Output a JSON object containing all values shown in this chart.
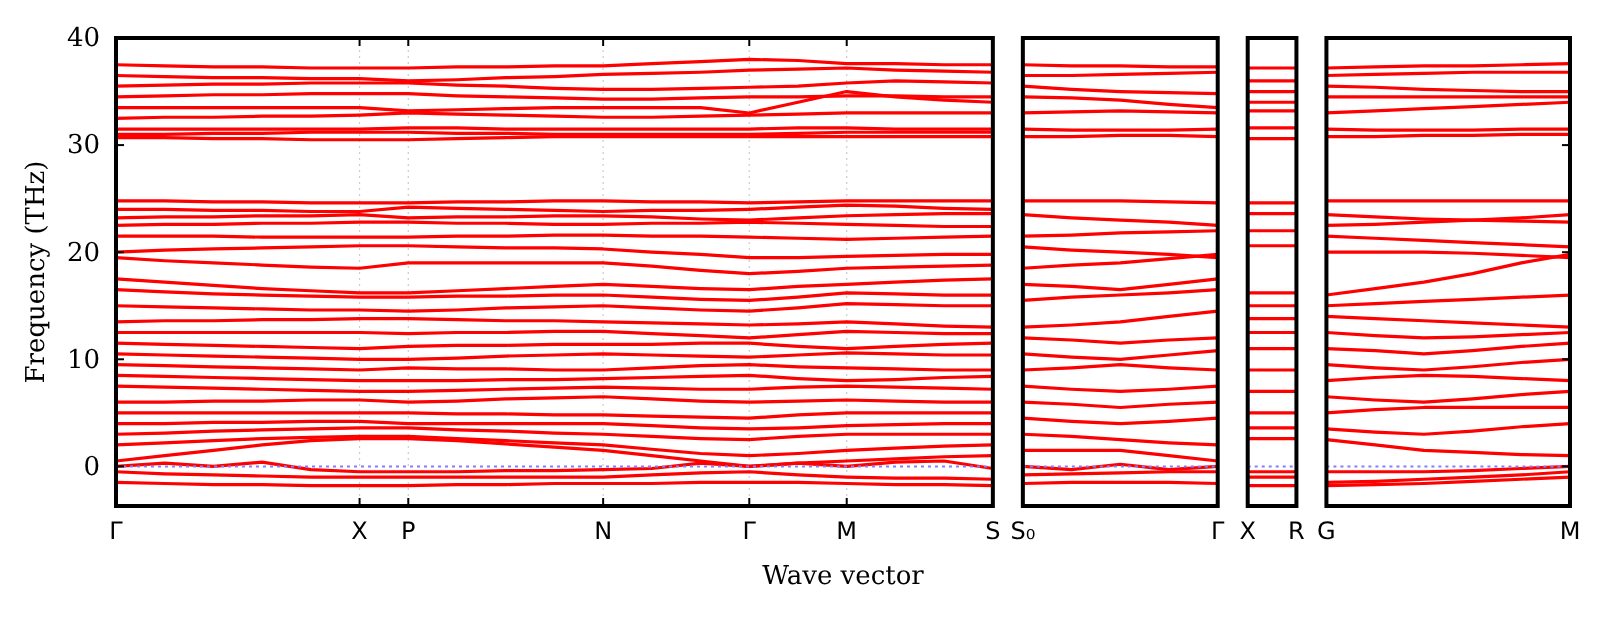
{
  "chart_data": [
    {
      "type": "line",
      "ylabel": "Frequency (THz)",
      "xlabel": "Wave vector",
      "ylim": [
        -3.7,
        40
      ],
      "yticks": [
        0,
        10,
        20,
        30,
        40
      ],
      "grid": "x",
      "categories": [
        "Γ",
        null,
        null,
        null,
        null,
        "X",
        "P",
        null,
        null,
        null,
        "N",
        null,
        null,
        "Γ",
        null,
        "M",
        null,
        null,
        "S"
      ],
      "ref_lines": [
        {
          "axis": "y",
          "value": 0,
          "color": "#8080ff",
          "line_style": "dotted"
        }
      ],
      "series": [
        {
          "color": "#ff0000",
          "values": [
            37.5,
            37.4,
            37.3,
            37.3,
            37.2,
            37.2,
            37.2,
            37.3,
            37.3,
            37.4,
            37.4,
            37.6,
            37.8,
            38.0,
            37.9,
            37.6,
            37.6,
            37.5,
            37.5
          ]
        },
        {
          "color": "#ff0000",
          "values": [
            36.5,
            36.4,
            36.3,
            36.3,
            36.2,
            36.2,
            36.0,
            36.1,
            36.3,
            36.4,
            36.6,
            36.7,
            36.8,
            37.0,
            37.1,
            37.2,
            37.0,
            36.9,
            36.8
          ]
        },
        {
          "color": "#ff0000",
          "values": [
            35.5,
            35.6,
            35.7,
            35.7,
            35.8,
            35.8,
            35.8,
            35.6,
            35.5,
            35.3,
            35.2,
            35.2,
            35.3,
            35.4,
            35.5,
            35.8,
            36.0,
            35.9,
            35.8
          ]
        },
        {
          "color": "#ff0000",
          "values": [
            34.5,
            34.6,
            34.7,
            34.7,
            34.8,
            34.8,
            34.8,
            34.6,
            34.5,
            34.4,
            34.3,
            34.3,
            34.4,
            34.5,
            34.5,
            34.6,
            34.6,
            34.5,
            34.5
          ]
        },
        {
          "color": "#ff0000",
          "values": [
            33.5,
            33.5,
            33.5,
            33.5,
            33.5,
            33.5,
            33.2,
            33.3,
            33.4,
            33.5,
            33.5,
            33.5,
            33.5,
            33.0,
            34.0,
            35.0,
            34.5,
            34.2,
            34.0
          ]
        },
        {
          "color": "#ff0000",
          "values": [
            32.5,
            32.6,
            32.6,
            32.7,
            32.7,
            32.8,
            33.0,
            32.9,
            32.8,
            32.7,
            32.6,
            32.6,
            32.7,
            32.8,
            32.9,
            33.0,
            33.0,
            33.0,
            33.0
          ]
        },
        {
          "color": "#ff0000",
          "values": [
            31.5,
            31.5,
            31.5,
            31.5,
            31.5,
            31.5,
            31.6,
            31.6,
            31.5,
            31.5,
            31.5,
            31.5,
            31.5,
            31.5,
            31.6,
            31.6,
            31.5,
            31.5,
            31.5
          ]
        },
        {
          "color": "#ff0000",
          "values": [
            31.0,
            31.0,
            31.1,
            31.1,
            31.2,
            31.2,
            31.2,
            31.1,
            31.1,
            31.0,
            31.0,
            31.0,
            31.0,
            31.0,
            31.1,
            31.2,
            31.2,
            31.2,
            31.2
          ]
        },
        {
          "color": "#ff0000",
          "values": [
            30.7,
            30.7,
            30.6,
            30.6,
            30.5,
            30.5,
            30.5,
            30.6,
            30.7,
            30.8,
            30.8,
            30.8,
            30.8,
            30.8,
            30.8,
            30.8,
            30.8,
            30.8,
            30.8
          ]
        },
        {
          "color": "#ff0000",
          "values": [
            24.8,
            24.8,
            24.7,
            24.7,
            24.6,
            24.6,
            24.6,
            24.7,
            24.7,
            24.8,
            24.8,
            24.7,
            24.7,
            24.6,
            24.7,
            24.8,
            24.8,
            24.8,
            24.8
          ]
        },
        {
          "color": "#ff0000",
          "values": [
            24.0,
            24.0,
            23.9,
            23.9,
            23.8,
            23.8,
            24.2,
            24.1,
            24.0,
            23.9,
            23.8,
            23.9,
            23.9,
            24.0,
            24.2,
            24.4,
            24.3,
            24.1,
            24.0
          ]
        },
        {
          "color": "#ff0000",
          "values": [
            23.2,
            23.3,
            23.3,
            23.4,
            23.4,
            23.5,
            23.2,
            23.3,
            23.3,
            23.4,
            23.4,
            23.3,
            23.1,
            23.0,
            23.2,
            23.4,
            23.5,
            23.6,
            23.6
          ]
        },
        {
          "color": "#ff0000",
          "values": [
            22.5,
            22.6,
            22.6,
            22.7,
            22.7,
            22.8,
            22.8,
            22.7,
            22.7,
            22.6,
            22.6,
            22.7,
            22.7,
            22.8,
            22.7,
            22.6,
            22.5,
            22.4,
            22.4
          ]
        },
        {
          "color": "#ff0000",
          "values": [
            21.5,
            21.5,
            21.5,
            21.4,
            21.4,
            21.4,
            21.4,
            21.5,
            21.5,
            21.6,
            21.6,
            21.5,
            21.5,
            21.4,
            21.3,
            21.2,
            21.3,
            21.4,
            21.5
          ]
        },
        {
          "color": "#ff0000",
          "values": [
            20.0,
            20.2,
            20.3,
            20.4,
            20.5,
            20.6,
            20.6,
            20.5,
            20.4,
            20.4,
            20.3,
            20.0,
            19.8,
            19.5,
            19.5,
            19.6,
            19.7,
            19.8,
            19.8
          ]
        },
        {
          "color": "#ff0000",
          "values": [
            19.5,
            19.2,
            19.0,
            18.8,
            18.6,
            18.5,
            19.0,
            19.0,
            19.0,
            19.0,
            19.0,
            18.7,
            18.3,
            18.0,
            18.2,
            18.5,
            18.6,
            18.7,
            18.8
          ]
        },
        {
          "color": "#ff0000",
          "values": [
            17.5,
            17.2,
            16.9,
            16.6,
            16.4,
            16.2,
            16.2,
            16.4,
            16.6,
            16.8,
            17.0,
            16.8,
            16.6,
            16.5,
            16.8,
            17.0,
            17.2,
            17.4,
            17.5
          ]
        },
        {
          "color": "#ff0000",
          "values": [
            16.5,
            16.3,
            16.1,
            16.0,
            15.9,
            15.8,
            15.8,
            15.9,
            15.9,
            16.0,
            16.0,
            15.8,
            15.6,
            15.5,
            15.8,
            16.2,
            16.1,
            16.0,
            16.0
          ]
        },
        {
          "color": "#ff0000",
          "values": [
            15.0,
            14.9,
            14.8,
            14.7,
            14.6,
            14.6,
            14.5,
            14.6,
            14.8,
            14.9,
            15.0,
            14.8,
            14.6,
            14.5,
            14.8,
            15.2,
            15.1,
            15.0,
            15.0
          ]
        },
        {
          "color": "#ff0000",
          "values": [
            13.5,
            13.6,
            13.6,
            13.7,
            13.7,
            13.8,
            13.8,
            13.7,
            13.6,
            13.6,
            13.5,
            13.4,
            13.3,
            13.2,
            13.3,
            13.5,
            13.3,
            13.1,
            13.0
          ]
        },
        {
          "color": "#ff0000",
          "values": [
            12.5,
            12.5,
            12.5,
            12.5,
            12.5,
            12.5,
            12.4,
            12.5,
            12.5,
            12.6,
            12.6,
            12.4,
            12.2,
            12.0,
            12.3,
            12.6,
            12.5,
            12.4,
            12.4
          ]
        },
        {
          "color": "#ff0000",
          "values": [
            11.5,
            11.4,
            11.3,
            11.2,
            11.1,
            11.0,
            11.2,
            11.3,
            11.3,
            11.4,
            11.4,
            11.4,
            11.5,
            11.5,
            11.2,
            11.0,
            11.2,
            11.4,
            11.5
          ]
        },
        {
          "color": "#ff0000",
          "values": [
            10.5,
            10.4,
            10.3,
            10.2,
            10.1,
            10.0,
            10.0,
            10.1,
            10.3,
            10.4,
            10.5,
            10.4,
            10.3,
            10.2,
            10.4,
            10.6,
            10.5,
            10.4,
            10.4
          ]
        },
        {
          "color": "#ff0000",
          "values": [
            9.5,
            9.4,
            9.3,
            9.2,
            9.1,
            9.0,
            9.2,
            9.1,
            9.1,
            9.0,
            9.0,
            9.2,
            9.4,
            9.5,
            9.3,
            9.2,
            9.1,
            9.0,
            9.0
          ]
        },
        {
          "color": "#ff0000",
          "values": [
            8.5,
            8.4,
            8.3,
            8.2,
            8.1,
            8.0,
            8.0,
            8.0,
            8.1,
            8.1,
            8.2,
            8.3,
            8.4,
            8.5,
            8.2,
            8.0,
            8.1,
            8.3,
            8.4
          ]
        },
        {
          "color": "#ff0000",
          "values": [
            7.5,
            7.4,
            7.3,
            7.2,
            7.1,
            7.0,
            7.0,
            7.1,
            7.2,
            7.3,
            7.4,
            7.3,
            7.2,
            7.2,
            7.4,
            7.5,
            7.4,
            7.3,
            7.2
          ]
        },
        {
          "color": "#ff0000",
          "values": [
            6.0,
            6.0,
            6.1,
            6.1,
            6.2,
            6.2,
            6.0,
            6.1,
            6.3,
            6.4,
            6.5,
            6.3,
            6.1,
            6.0,
            6.1,
            6.2,
            6.1,
            6.0,
            6.0
          ]
        },
        {
          "color": "#ff0000",
          "values": [
            5.0,
            5.0,
            5.0,
            5.0,
            5.0,
            5.0,
            5.0,
            4.9,
            4.9,
            4.8,
            4.8,
            4.7,
            4.6,
            4.5,
            4.8,
            5.0,
            5.0,
            5.0,
            5.0
          ]
        },
        {
          "color": "#ff0000",
          "values": [
            4.0,
            4.0,
            4.1,
            4.1,
            4.2,
            4.2,
            4.0,
            4.0,
            4.0,
            4.0,
            4.0,
            3.8,
            3.6,
            3.5,
            3.6,
            3.8,
            3.9,
            4.0,
            4.0
          ]
        },
        {
          "color": "#ff0000",
          "values": [
            3.0,
            3.1,
            3.3,
            3.4,
            3.5,
            3.6,
            3.6,
            3.4,
            3.3,
            3.1,
            3.0,
            2.8,
            2.6,
            2.5,
            2.8,
            3.0,
            3.0,
            3.0,
            3.0
          ]
        },
        {
          "color": "#ff0000",
          "values": [
            2.0,
            2.2,
            2.4,
            2.6,
            2.7,
            2.8,
            2.8,
            2.6,
            2.4,
            2.2,
            2.0,
            1.6,
            1.2,
            1.0,
            1.2,
            1.5,
            1.7,
            1.9,
            2.0
          ]
        },
        {
          "color": "#ff0000",
          "values": [
            0.5,
            1.0,
            1.5,
            2.0,
            2.4,
            2.6,
            2.6,
            2.4,
            2.1,
            1.8,
            1.5,
            1.0,
            0.5,
            0.0,
            0.3,
            0.5,
            0.7,
            0.9,
            1.0
          ]
        },
        {
          "color": "#ff0000",
          "values": [
            0.0,
            0.3,
            0.0,
            0.4,
            -0.3,
            -0.5,
            -0.5,
            -0.5,
            -0.4,
            -0.4,
            -0.3,
            -0.2,
            0.3,
            0.0,
            0.3,
            0.0,
            0.4,
            0.5,
            -0.2
          ]
        },
        {
          "color": "#ff0000",
          "values": [
            -0.5,
            -0.7,
            -0.8,
            -0.9,
            -1.0,
            -1.0,
            -1.0,
            -1.0,
            -1.0,
            -1.0,
            -1.0,
            -0.8,
            -0.6,
            -0.5,
            -0.8,
            -1.0,
            -1.1,
            -1.1,
            -1.2
          ]
        },
        {
          "color": "#ff0000",
          "values": [
            -1.5,
            -1.6,
            -1.7,
            -1.7,
            -1.8,
            -1.8,
            -1.8,
            -1.7,
            -1.7,
            -1.6,
            -1.6,
            -1.6,
            -1.5,
            -1.5,
            -1.5,
            -1.6,
            -1.7,
            -1.7,
            -1.8
          ]
        }
      ]
    },
    {
      "type": "line",
      "tick_labels": "x",
      "ylim": [
        -3.7,
        40
      ],
      "categories": [
        "S₀",
        null,
        null,
        null,
        "Γ"
      ],
      "ref_lines": [
        {
          "axis": "y",
          "value": 0,
          "color": "#8080ff",
          "line_style": "dotted"
        }
      ],
      "series": [
        {
          "color": "#ff0000",
          "values": [
            37.5,
            37.4,
            37.4,
            37.3,
            37.3
          ]
        },
        {
          "color": "#ff0000",
          "values": [
            36.5,
            36.5,
            36.6,
            36.7,
            36.8
          ]
        },
        {
          "color": "#ff0000",
          "values": [
            35.5,
            35.2,
            35.0,
            34.9,
            34.8
          ]
        },
        {
          "color": "#ff0000",
          "values": [
            34.5,
            34.4,
            34.2,
            33.8,
            33.5
          ]
        },
        {
          "color": "#ff0000",
          "values": [
            33.0,
            33.1,
            33.2,
            33.1,
            33.0
          ]
        },
        {
          "color": "#ff0000",
          "values": [
            31.5,
            31.4,
            31.4,
            31.4,
            31.5
          ]
        },
        {
          "color": "#ff0000",
          "values": [
            30.8,
            30.8,
            30.9,
            30.9,
            30.8
          ]
        },
        {
          "color": "#ff0000",
          "values": [
            24.8,
            24.8,
            24.8,
            24.7,
            24.6
          ]
        },
        {
          "color": "#ff0000",
          "values": [
            23.5,
            23.2,
            23.0,
            22.8,
            22.5
          ]
        },
        {
          "color": "#ff0000",
          "values": [
            21.5,
            21.6,
            21.8,
            21.9,
            22.0
          ]
        },
        {
          "color": "#ff0000",
          "values": [
            20.5,
            20.2,
            20.0,
            19.8,
            19.5
          ]
        },
        {
          "color": "#ff0000",
          "values": [
            18.5,
            18.8,
            19.0,
            19.4,
            19.8
          ]
        },
        {
          "color": "#ff0000",
          "values": [
            17.0,
            16.8,
            16.5,
            17.0,
            17.5
          ]
        },
        {
          "color": "#ff0000",
          "values": [
            15.5,
            15.8,
            16.0,
            16.2,
            16.5
          ]
        },
        {
          "color": "#ff0000",
          "values": [
            13.0,
            13.2,
            13.5,
            14.0,
            14.5
          ]
        },
        {
          "color": "#ff0000",
          "values": [
            12.0,
            11.8,
            11.5,
            11.8,
            12.0
          ]
        },
        {
          "color": "#ff0000",
          "values": [
            10.5,
            10.2,
            10.0,
            10.4,
            10.8
          ]
        },
        {
          "color": "#ff0000",
          "values": [
            9.0,
            9.2,
            9.5,
            9.2,
            9.0
          ]
        },
        {
          "color": "#ff0000",
          "values": [
            7.5,
            7.2,
            7.0,
            7.2,
            7.5
          ]
        },
        {
          "color": "#ff0000",
          "values": [
            6.0,
            5.8,
            5.5,
            5.8,
            6.0
          ]
        },
        {
          "color": "#ff0000",
          "values": [
            4.5,
            4.2,
            4.0,
            4.2,
            4.5
          ]
        },
        {
          "color": "#ff0000",
          "values": [
            3.0,
            2.8,
            2.5,
            2.2,
            2.0
          ]
        },
        {
          "color": "#ff0000",
          "values": [
            1.5,
            1.5,
            1.5,
            1.0,
            0.5
          ]
        },
        {
          "color": "#ff0000",
          "values": [
            0.0,
            -0.3,
            0.2,
            -0.3,
            0.0
          ]
        },
        {
          "color": "#ff0000",
          "values": [
            -0.8,
            -0.7,
            -0.6,
            -0.5,
            -0.5
          ]
        },
        {
          "color": "#ff0000",
          "values": [
            -1.6,
            -1.5,
            -1.5,
            -1.5,
            -1.6
          ]
        }
      ]
    },
    {
      "type": "line",
      "tick_labels": "x",
      "ylim": [
        -3.7,
        40
      ],
      "categories": [
        "X",
        "R"
      ],
      "ref_lines": [
        {
          "axis": "y",
          "value": 0,
          "color": "#8080ff",
          "line_style": "dotted"
        }
      ],
      "series": [
        {
          "color": "#ff0000",
          "values": [
            37.2,
            37.2
          ]
        },
        {
          "color": "#ff0000",
          "values": [
            36.0,
            36.0
          ]
        },
        {
          "color": "#ff0000",
          "values": [
            35.0,
            35.0
          ]
        },
        {
          "color": "#ff0000",
          "values": [
            34.0,
            34.0
          ]
        },
        {
          "color": "#ff0000",
          "values": [
            33.2,
            33.2
          ]
        },
        {
          "color": "#ff0000",
          "values": [
            31.6,
            31.6
          ]
        },
        {
          "color": "#ff0000",
          "values": [
            30.6,
            30.6
          ]
        },
        {
          "color": "#ff0000",
          "values": [
            24.6,
            24.6
          ]
        },
        {
          "color": "#ff0000",
          "values": [
            23.6,
            23.6
          ]
        },
        {
          "color": "#ff0000",
          "values": [
            22.0,
            22.0
          ]
        },
        {
          "color": "#ff0000",
          "values": [
            20.6,
            20.6
          ]
        },
        {
          "color": "#ff0000",
          "values": [
            16.2,
            16.2
          ]
        },
        {
          "color": "#ff0000",
          "values": [
            15.0,
            15.0
          ]
        },
        {
          "color": "#ff0000",
          "values": [
            13.8,
            13.8
          ]
        },
        {
          "color": "#ff0000",
          "values": [
            12.5,
            12.5
          ]
        },
        {
          "color": "#ff0000",
          "values": [
            11.0,
            11.0
          ]
        },
        {
          "color": "#ff0000",
          "values": [
            9.0,
            9.0
          ]
        },
        {
          "color": "#ff0000",
          "values": [
            7.0,
            7.0
          ]
        },
        {
          "color": "#ff0000",
          "values": [
            5.0,
            5.0
          ]
        },
        {
          "color": "#ff0000",
          "values": [
            3.6,
            3.6
          ]
        },
        {
          "color": "#ff0000",
          "values": [
            2.6,
            2.6
          ]
        },
        {
          "color": "#ff0000",
          "values": [
            -0.5,
            -0.5
          ]
        },
        {
          "color": "#ff0000",
          "values": [
            -1.0,
            -1.0
          ]
        },
        {
          "color": "#ff0000",
          "values": [
            -1.8,
            -1.8
          ]
        }
      ]
    },
    {
      "type": "line",
      "tick_labels": "x",
      "ylim": [
        -3.7,
        40
      ],
      "categories": [
        "G",
        null,
        null,
        null,
        null,
        "M"
      ],
      "ref_lines": [
        {
          "axis": "y",
          "value": 0,
          "color": "#8080ff",
          "line_style": "dotted"
        }
      ],
      "series": [
        {
          "color": "#ff0000",
          "values": [
            37.2,
            37.3,
            37.4,
            37.4,
            37.5,
            37.6
          ]
        },
        {
          "color": "#ff0000",
          "values": [
            36.5,
            36.6,
            36.7,
            36.8,
            36.8,
            36.8
          ]
        },
        {
          "color": "#ff0000",
          "values": [
            35.5,
            35.4,
            35.2,
            35.1,
            35.0,
            35.0
          ]
        },
        {
          "color": "#ff0000",
          "values": [
            34.5,
            34.5,
            34.5,
            34.5,
            34.5,
            34.5
          ]
        },
        {
          "color": "#ff0000",
          "values": [
            33.0,
            33.2,
            33.4,
            33.6,
            33.8,
            34.0
          ]
        },
        {
          "color": "#ff0000",
          "values": [
            31.5,
            31.4,
            31.4,
            31.4,
            31.5,
            31.5
          ]
        },
        {
          "color": "#ff0000",
          "values": [
            30.8,
            30.8,
            30.9,
            30.9,
            31.0,
            31.0
          ]
        },
        {
          "color": "#ff0000",
          "values": [
            24.8,
            24.8,
            24.8,
            24.8,
            24.8,
            24.8
          ]
        },
        {
          "color": "#ff0000",
          "values": [
            23.5,
            23.3,
            23.1,
            23.0,
            22.9,
            22.8
          ]
        },
        {
          "color": "#ff0000",
          "values": [
            22.5,
            22.6,
            22.8,
            23.0,
            23.2,
            23.5
          ]
        },
        {
          "color": "#ff0000",
          "values": [
            21.5,
            21.3,
            21.1,
            20.9,
            20.7,
            20.5
          ]
        },
        {
          "color": "#ff0000",
          "values": [
            20.0,
            20.0,
            20.0,
            19.9,
            19.7,
            19.5
          ]
        },
        {
          "color": "#ff0000",
          "values": [
            16.0,
            16.6,
            17.2,
            18.0,
            19.0,
            19.8
          ]
        },
        {
          "color": "#ff0000",
          "values": [
            15.0,
            15.2,
            15.4,
            15.6,
            15.8,
            16.0
          ]
        },
        {
          "color": "#ff0000",
          "values": [
            14.0,
            13.8,
            13.6,
            13.4,
            13.2,
            13.0
          ]
        },
        {
          "color": "#ff0000",
          "values": [
            12.5,
            12.2,
            12.0,
            12.1,
            12.3,
            12.5
          ]
        },
        {
          "color": "#ff0000",
          "values": [
            11.0,
            10.8,
            10.5,
            10.8,
            11.2,
            11.5
          ]
        },
        {
          "color": "#ff0000",
          "values": [
            9.5,
            9.2,
            9.0,
            9.3,
            9.7,
            10.0
          ]
        },
        {
          "color": "#ff0000",
          "values": [
            8.0,
            8.3,
            8.5,
            8.4,
            8.2,
            8.0
          ]
        },
        {
          "color": "#ff0000",
          "values": [
            6.5,
            6.2,
            6.0,
            6.3,
            6.7,
            7.0
          ]
        },
        {
          "color": "#ff0000",
          "values": [
            5.0,
            5.3,
            5.5,
            5.5,
            5.5,
            5.5
          ]
        },
        {
          "color": "#ff0000",
          "values": [
            3.5,
            3.2,
            3.0,
            3.3,
            3.7,
            4.0
          ]
        },
        {
          "color": "#ff0000",
          "values": [
            2.5,
            2.0,
            1.5,
            1.3,
            1.1,
            1.0
          ]
        },
        {
          "color": "#ff0000",
          "values": [
            -0.5,
            -0.5,
            -0.5,
            -0.4,
            -0.2,
            0.0
          ]
        },
        {
          "color": "#ff0000",
          "values": [
            -1.5,
            -1.4,
            -1.2,
            -1.0,
            -0.8,
            -0.5
          ]
        },
        {
          "color": "#ff0000",
          "values": [
            -1.8,
            -1.7,
            -1.6,
            -1.4,
            -1.2,
            -1.0
          ]
        }
      ]
    }
  ]
}
